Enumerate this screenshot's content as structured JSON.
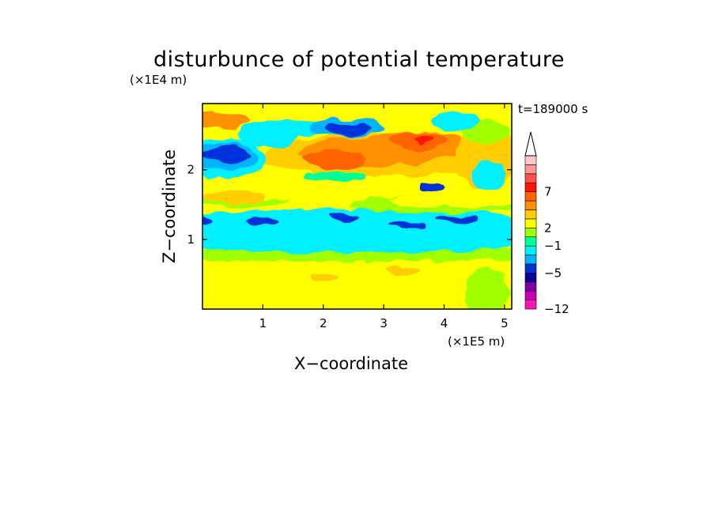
{
  "chart_data": {
    "type": "heatmap",
    "title": "disturbunce of potential temperature",
    "xlabel": "X−coordinate",
    "ylabel": "Z−coordinate",
    "x_multiplier": "(×1E5 m)",
    "y_multiplier": "(×1E4 m)",
    "time_label": "t=189000 s",
    "xlim": [
      0,
      5.12
    ],
    "ylim": [
      0,
      2.95
    ],
    "xticks": [
      1,
      2,
      3,
      4,
      5
    ],
    "xtick_labels": [
      "1",
      "2",
      "3",
      "4",
      "5"
    ],
    "yticks": [
      1,
      2
    ],
    "ytick_labels": [
      "1",
      "2"
    ],
    "colorbar": {
      "colors": [
        "#ff14b4",
        "#c800b4",
        "#7d00a0",
        "#0a0096",
        "#0032dc",
        "#00b4ff",
        "#00f0ff",
        "#00ff96",
        "#a0ff00",
        "#ffff00",
        "#ffcd00",
        "#ff9100",
        "#ff6400",
        "#ff1400",
        "#ff5050",
        "#ff9696",
        "#ffc8c8"
      ],
      "extend_top_color": "#ffffff",
      "labels": [
        {
          "level_index": 0,
          "text": "−12"
        },
        {
          "level_index": 4,
          "text": "−5"
        },
        {
          "level_index": 7,
          "text": "−1"
        },
        {
          "level_index": 9,
          "text": "2"
        },
        {
          "level_index": 13,
          "text": "7"
        }
      ]
    },
    "grid": false,
    "regions": [
      {
        "level": 9,
        "cx": 2.5,
        "cy": 0.38,
        "rx": 4.0,
        "ry": 0.45
      },
      {
        "level": 8,
        "cx": 2.5,
        "cy": 0.78,
        "rx": 4.0,
        "ry": 0.1
      },
      {
        "level": 6,
        "cx": 2.5,
        "cy": 1.12,
        "rx": 4.0,
        "ry": 0.32
      },
      {
        "level": 8,
        "cx": 4.7,
        "cy": 0.25,
        "rx": 0.35,
        "ry": 0.35
      },
      {
        "level": 10,
        "cx": 2.0,
        "cy": 0.45,
        "rx": 0.25,
        "ry": 0.05
      },
      {
        "level": 10,
        "cx": 3.3,
        "cy": 0.55,
        "rx": 0.3,
        "ry": 0.06
      },
      {
        "level": 8,
        "cx": 0.5,
        "cy": 1.65,
        "rx": 1.0,
        "ry": 0.18
      },
      {
        "level": 9,
        "cx": 0.8,
        "cy": 1.72,
        "rx": 1.2,
        "ry": 0.14
      },
      {
        "level": 10,
        "cx": 0.5,
        "cy": 1.62,
        "rx": 0.5,
        "ry": 0.1
      },
      {
        "level": 8,
        "cx": 3.8,
        "cy": 1.5,
        "rx": 1.4,
        "ry": 0.12
      },
      {
        "level": 9,
        "cx": 4.1,
        "cy": 1.55,
        "rx": 1.0,
        "ry": 0.1
      },
      {
        "level": 4,
        "cx": 0.0,
        "cy": 1.28,
        "rx": 0.15,
        "ry": 0.06
      },
      {
        "level": 4,
        "cx": 1.0,
        "cy": 1.26,
        "rx": 0.3,
        "ry": 0.05
      },
      {
        "level": 4,
        "cx": 2.35,
        "cy": 1.33,
        "rx": 0.25,
        "ry": 0.05
      },
      {
        "level": 4,
        "cx": 3.4,
        "cy": 1.2,
        "rx": 0.3,
        "ry": 0.05
      },
      {
        "level": 4,
        "cx": 4.25,
        "cy": 1.3,
        "rx": 0.35,
        "ry": 0.05
      },
      {
        "level": 4,
        "cx": 3.8,
        "cy": 1.75,
        "rx": 0.2,
        "ry": 0.08
      },
      {
        "level": 9,
        "cx": 2.5,
        "cy": 2.15,
        "rx": 2.5,
        "ry": 0.4
      },
      {
        "level": 10,
        "cx": 3.0,
        "cy": 2.2,
        "rx": 2.0,
        "ry": 0.3
      },
      {
        "level": 11,
        "cx": 2.8,
        "cy": 2.25,
        "rx": 1.2,
        "ry": 0.2
      },
      {
        "level": 12,
        "cx": 2.2,
        "cy": 2.15,
        "rx": 0.5,
        "ry": 0.14
      },
      {
        "level": 11,
        "cx": 3.6,
        "cy": 2.35,
        "rx": 0.8,
        "ry": 0.2
      },
      {
        "level": 12,
        "cx": 3.6,
        "cy": 2.42,
        "rx": 0.45,
        "ry": 0.12
      },
      {
        "level": 13,
        "cx": 3.65,
        "cy": 2.45,
        "rx": 0.15,
        "ry": 0.06
      },
      {
        "level": 6,
        "cx": 0.35,
        "cy": 2.15,
        "rx": 0.7,
        "ry": 0.3
      },
      {
        "level": 5,
        "cx": 0.35,
        "cy": 2.2,
        "rx": 0.55,
        "ry": 0.2
      },
      {
        "level": 4,
        "cx": 0.4,
        "cy": 2.22,
        "rx": 0.4,
        "ry": 0.13
      },
      {
        "level": 6,
        "cx": 1.5,
        "cy": 2.6,
        "rx": 0.6,
        "ry": 0.1
      },
      {
        "level": 5,
        "cx": 2.4,
        "cy": 2.6,
        "rx": 0.6,
        "ry": 0.14
      },
      {
        "level": 4,
        "cx": 2.4,
        "cy": 2.58,
        "rx": 0.4,
        "ry": 0.1
      },
      {
        "level": 11,
        "cx": 0.3,
        "cy": 2.7,
        "rx": 0.5,
        "ry": 0.12
      },
      {
        "level": 10,
        "cx": 4.7,
        "cy": 2.2,
        "rx": 0.5,
        "ry": 0.5
      },
      {
        "level": 8,
        "cx": 4.7,
        "cy": 2.55,
        "rx": 0.4,
        "ry": 0.15
      },
      {
        "level": 6,
        "cx": 1.1,
        "cy": 2.5,
        "rx": 0.5,
        "ry": 0.18
      },
      {
        "level": 6,
        "cx": 4.2,
        "cy": 2.7,
        "rx": 0.4,
        "ry": 0.15
      },
      {
        "level": 6,
        "cx": 4.75,
        "cy": 1.9,
        "rx": 0.3,
        "ry": 0.2
      },
      {
        "level": 9,
        "cx": 4.9,
        "cy": 2.85,
        "rx": 0.3,
        "ry": 0.1
      },
      {
        "level": 7,
        "cx": 2.2,
        "cy": 1.9,
        "rx": 0.5,
        "ry": 0.08
      }
    ]
  }
}
